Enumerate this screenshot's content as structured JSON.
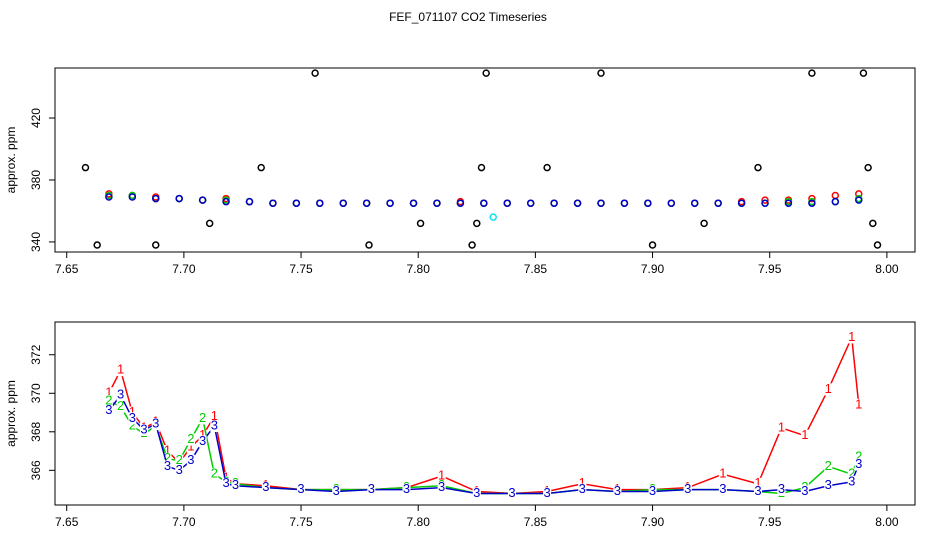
{
  "title": "FEF_071107  CO2 Timeseries",
  "chart_data": [
    {
      "type": "scatter",
      "ylabel": "approx. ppm",
      "xlim": [
        7.645,
        8.012
      ],
      "ylim": [
        333.5,
        452.3
      ],
      "xticks": [
        7.65,
        {
          "value": 7.7,
          "label": "7.70"
        },
        7.75,
        {
          "value": 7.8,
          "label": "7.80"
        },
        7.85,
        {
          "value": 7.9,
          "label": "7.90"
        },
        7.95,
        {
          "value": 8,
          "label": "8.00"
        }
      ],
      "yticks": [
        340,
        380,
        420
      ],
      "series": [
        {
          "color": "#000000",
          "x": [
            7.658,
            7.663,
            7.688,
            7.711,
            7.733,
            7.756,
            7.779,
            7.801,
            7.823,
            7.825,
            7.827,
            7.829,
            7.855,
            7.878,
            7.9,
            7.922,
            7.945,
            7.968,
            7.99,
            7.992,
            7.994,
            7.996
          ],
          "values": [
            388,
            338,
            338,
            352,
            388,
            449,
            338,
            352,
            338,
            352,
            388,
            449,
            388,
            449,
            338,
            352,
            388,
            449,
            449,
            388,
            352,
            338
          ]
        },
        {
          "color": "#00e5ee",
          "x": [
            7.832
          ],
          "values": [
            356
          ]
        },
        {
          "color": "#ff0000",
          "x": [
            7.668,
            7.678,
            7.688,
            7.698,
            7.708,
            7.718,
            7.728,
            7.738,
            7.748,
            7.758,
            7.768,
            7.778,
            7.788,
            7.798,
            7.808,
            7.818,
            7.828,
            7.838,
            7.848,
            7.858,
            7.868,
            7.878,
            7.888,
            7.898,
            7.908,
            7.918,
            7.928,
            7.938,
            7.948,
            7.958,
            7.968,
            7.978,
            7.988
          ],
          "values": [
            371,
            370,
            369,
            368,
            367,
            368,
            366,
            365,
            365,
            365,
            365,
            365,
            365,
            365,
            365,
            366,
            365,
            365,
            365,
            365,
            365,
            365,
            365,
            365,
            365,
            365,
            365,
            366,
            367,
            367,
            368,
            370,
            371
          ]
        },
        {
          "color": "#00cd00",
          "x": [
            7.668,
            7.678,
            7.688,
            7.698,
            7.708,
            7.718,
            7.728,
            7.738,
            7.748,
            7.758,
            7.768,
            7.778,
            7.788,
            7.798,
            7.808,
            7.818,
            7.828,
            7.838,
            7.848,
            7.858,
            7.868,
            7.878,
            7.888,
            7.898,
            7.908,
            7.918,
            7.928,
            7.938,
            7.948,
            7.958,
            7.968,
            7.978,
            7.988
          ],
          "values": [
            370,
            370,
            368,
            368,
            367,
            367,
            366,
            365,
            365,
            365,
            365,
            365,
            365,
            365,
            365,
            365,
            365,
            365,
            365,
            365,
            365,
            365,
            365,
            365,
            365,
            365,
            365,
            365,
            365,
            366,
            366,
            366,
            368
          ]
        },
        {
          "color": "#0000cd",
          "x": [
            7.668,
            7.678,
            7.688,
            7.698,
            7.708,
            7.718,
            7.728,
            7.738,
            7.748,
            7.758,
            7.768,
            7.778,
            7.788,
            7.798,
            7.808,
            7.818,
            7.828,
            7.838,
            7.848,
            7.858,
            7.868,
            7.878,
            7.888,
            7.898,
            7.908,
            7.918,
            7.928,
            7.938,
            7.948,
            7.958,
            7.968,
            7.978,
            7.988
          ],
          "values": [
            369,
            369,
            368,
            368,
            367,
            366,
            366,
            365,
            365,
            365,
            365,
            365,
            365,
            365,
            365,
            365,
            365,
            365,
            365,
            365,
            365,
            365,
            365,
            365,
            365,
            365,
            365,
            365,
            365,
            365,
            365,
            366,
            367
          ]
        }
      ]
    },
    {
      "type": "line",
      "ylabel": "approx. ppm",
      "xlim": [
        7.645,
        8.012
      ],
      "ylim": [
        364.2,
        373.7
      ],
      "xticks": [
        7.65,
        {
          "value": 7.7,
          "label": "7.70"
        },
        7.75,
        {
          "value": 7.8,
          "label": "7.80"
        },
        7.85,
        {
          "value": 7.9,
          "label": "7.90"
        },
        7.95,
        {
          "value": 8,
          "label": "8.00"
        }
      ],
      "yticks": [
        366,
        368,
        370,
        372
      ],
      "series": [
        {
          "color": "#ff0000",
          "marker": "1",
          "x": [
            7.668,
            7.673,
            7.678,
            7.683,
            7.688,
            7.693,
            7.698,
            7.703,
            7.708,
            7.713,
            7.718,
            7.722,
            7.735,
            7.75,
            7.765,
            7.78,
            7.795,
            7.81,
            7.825,
            7.84,
            7.855,
            7.87,
            7.885,
            7.9,
            7.915,
            7.93,
            7.945,
            7.955,
            7.965,
            7.975,
            7.985,
            7.988
          ],
          "values": [
            370.0,
            371.2,
            369.0,
            368.2,
            368.5,
            367.0,
            366.4,
            367.2,
            367.8,
            368.8,
            365.6,
            365.3,
            365.2,
            365.0,
            365.0,
            365.0,
            365.1,
            365.7,
            364.9,
            364.8,
            364.9,
            365.3,
            365.0,
            365.0,
            365.1,
            365.8,
            365.3,
            368.2,
            367.8,
            370.2,
            372.9,
            369.4
          ]
        },
        {
          "color": "#00cd00",
          "marker": "2",
          "x": [
            7.668,
            7.673,
            7.678,
            7.683,
            7.688,
            7.693,
            7.698,
            7.703,
            7.708,
            7.713,
            7.718,
            7.722,
            7.735,
            7.75,
            7.765,
            7.78,
            7.795,
            7.81,
            7.825,
            7.84,
            7.855,
            7.87,
            7.885,
            7.9,
            7.915,
            7.93,
            7.945,
            7.955,
            7.965,
            7.975,
            7.985,
            7.988
          ],
          "values": [
            369.6,
            369.3,
            368.3,
            367.9,
            368.3,
            366.6,
            366.5,
            367.6,
            368.7,
            365.8,
            365.4,
            365.3,
            365.1,
            365.0,
            365.0,
            365.0,
            365.1,
            365.2,
            364.8,
            364.8,
            364.8,
            365.0,
            364.9,
            365.0,
            365.0,
            365.0,
            364.9,
            364.8,
            365.1,
            366.2,
            365.8,
            366.7
          ]
        },
        {
          "color": "#0000cd",
          "marker": "3",
          "x": [
            7.668,
            7.673,
            7.678,
            7.683,
            7.688,
            7.693,
            7.698,
            7.703,
            7.708,
            7.713,
            7.718,
            7.722,
            7.735,
            7.75,
            7.765,
            7.78,
            7.795,
            7.81,
            7.825,
            7.84,
            7.855,
            7.87,
            7.885,
            7.9,
            7.915,
            7.93,
            7.945,
            7.955,
            7.965,
            7.975,
            7.985,
            7.988
          ],
          "values": [
            369.1,
            369.9,
            368.7,
            368.1,
            368.4,
            366.2,
            366.0,
            366.5,
            367.5,
            368.3,
            365.3,
            365.2,
            365.1,
            365.0,
            364.9,
            365.0,
            365.0,
            365.1,
            364.8,
            364.8,
            364.8,
            365.0,
            364.9,
            364.9,
            365.0,
            365.0,
            364.9,
            365.0,
            364.9,
            365.2,
            365.4,
            366.3
          ]
        }
      ]
    }
  ]
}
